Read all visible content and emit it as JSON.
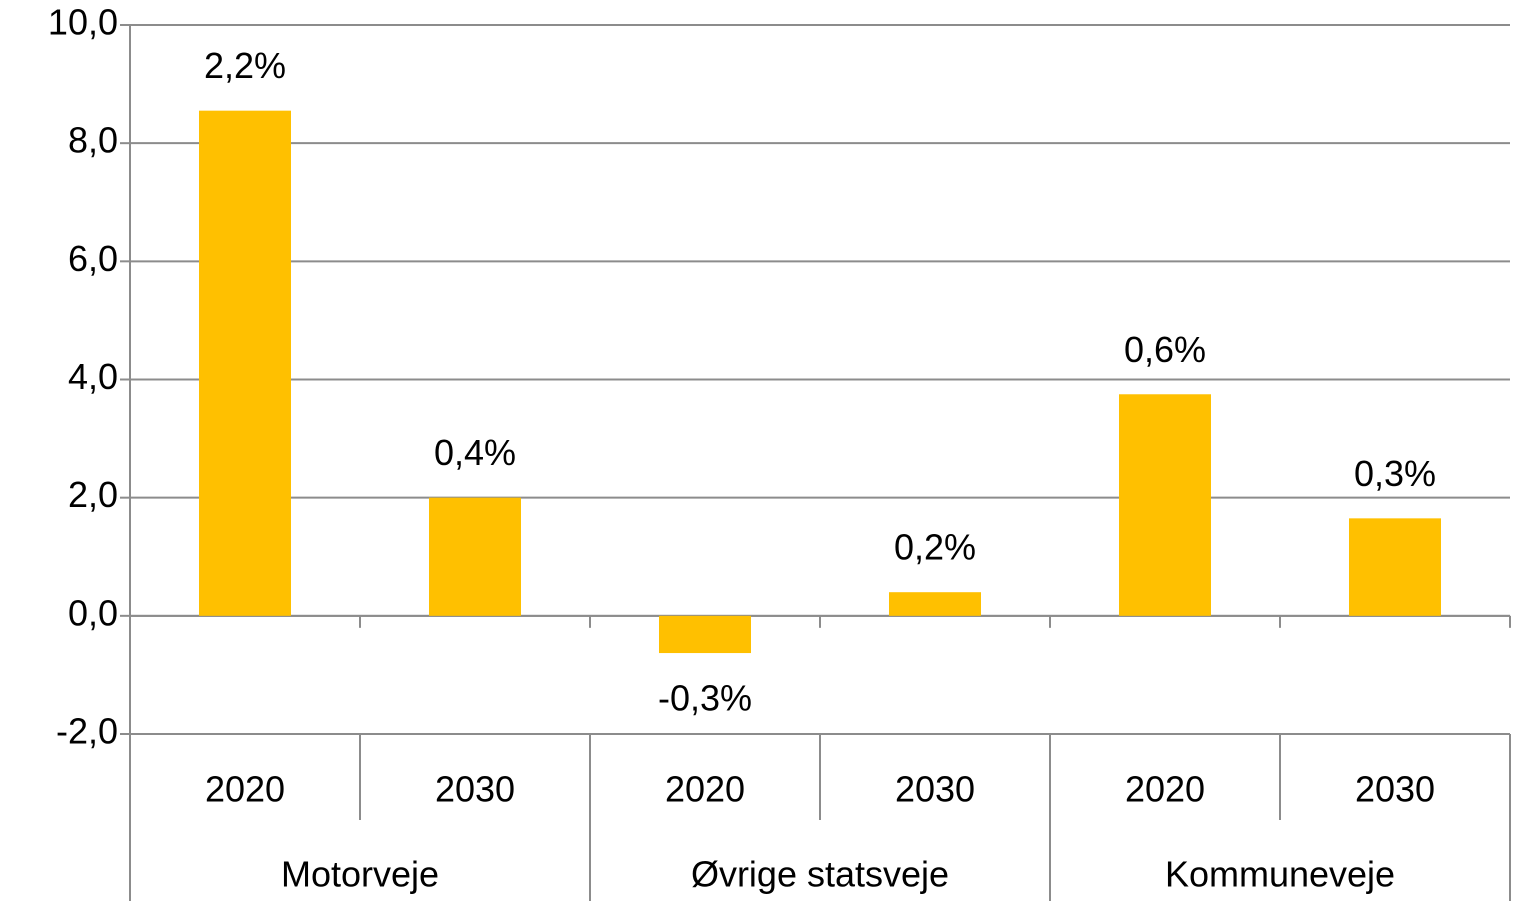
{
  "chart_data": {
    "type": "bar",
    "categories": [
      "2020",
      "2030",
      "2020",
      "2030",
      "2020",
      "2030"
    ],
    "groups": [
      "Motorveje",
      "Øvrige statsveje",
      "Kommuneveje"
    ],
    "values": [
      8.55,
      2.0,
      -0.63,
      0.4,
      3.75,
      1.65
    ],
    "annotations": [
      "2,2%",
      "0,4%",
      "-0,3%",
      "0,2%",
      "0,6%",
      "0,3%"
    ],
    "color": "#ffc000",
    "ylim": [
      -2,
      10
    ],
    "yticks": [
      {
        "value": -2,
        "label": "-2,0"
      },
      {
        "value": 0,
        "label": "0,0"
      },
      {
        "value": 2,
        "label": "2,0"
      },
      {
        "value": 4,
        "label": "4,0"
      },
      {
        "value": 6,
        "label": "6,0"
      },
      {
        "value": 8,
        "label": "8,0"
      },
      {
        "value": 10,
        "label": "10,0"
      }
    ],
    "grid": true
  }
}
